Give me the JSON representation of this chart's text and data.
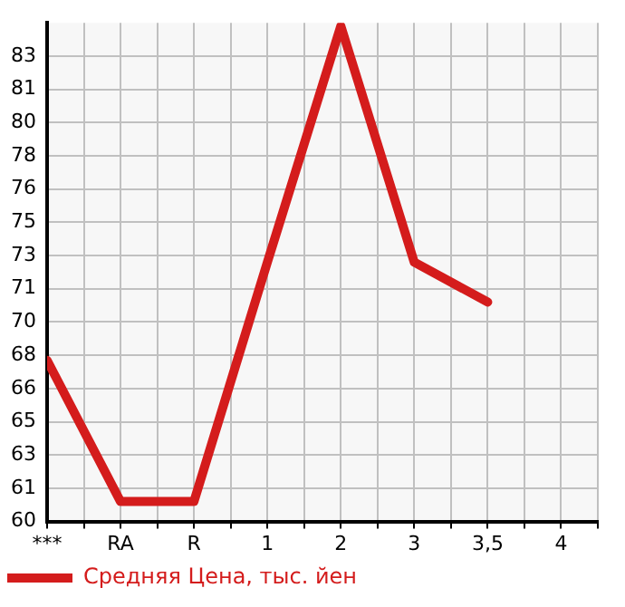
{
  "chart_data": {
    "type": "line",
    "categories": [
      "***",
      "RA",
      "R",
      "1",
      "2",
      "3",
      "3,5",
      "4"
    ],
    "series": [
      {
        "name": "Средняя Цена, тыс. йен",
        "color": "#d41c1c",
        "values": [
          67.75,
          60.74,
          60.74,
          72.62,
          84.34,
          72.62,
          70.64,
          null
        ]
      }
    ],
    "ylim": [
      59.75,
      84.5
    ],
    "yticks": [
      {
        "value": 59.75,
        "label": "60"
      },
      {
        "value": 61.4,
        "label": "61"
      },
      {
        "value": 63.05,
        "label": "63"
      },
      {
        "value": 64.7,
        "label": "65"
      },
      {
        "value": 66.35,
        "label": "66"
      },
      {
        "value": 68,
        "label": "68"
      },
      {
        "value": 69.65,
        "label": "70"
      },
      {
        "value": 71.3,
        "label": "71"
      },
      {
        "value": 72.95,
        "label": "73"
      },
      {
        "value": 74.6,
        "label": "75"
      },
      {
        "value": 76.25,
        "label": "76"
      },
      {
        "value": 77.9,
        "label": "78"
      },
      {
        "value": 79.55,
        "label": "80"
      },
      {
        "value": 81.2,
        "label": "81"
      },
      {
        "value": 82.85,
        "label": "83"
      }
    ],
    "grid": true,
    "legend": "bottom left",
    "marker": "none",
    "line_style": "solid"
  }
}
